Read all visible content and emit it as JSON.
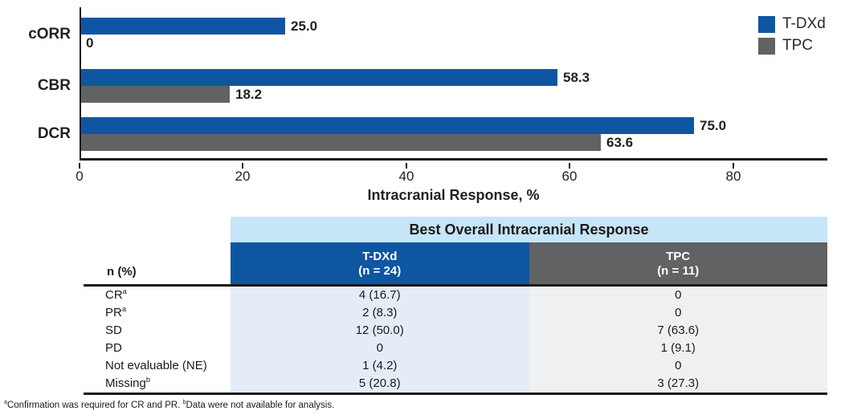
{
  "chart_data": {
    "type": "bar",
    "orientation": "horizontal",
    "title": "",
    "categories": [
      "cORR",
      "CBR",
      "DCR"
    ],
    "series": [
      {
        "name": "T-DXd",
        "color": "#0e56a1",
        "values": [
          25.0,
          58.3,
          75.0
        ],
        "value_labels": [
          "25.0",
          "58.3",
          "75.0"
        ]
      },
      {
        "name": "TPC",
        "color": "#606264",
        "values": [
          0,
          18.2,
          63.6
        ],
        "value_labels": [
          "0",
          "18.2",
          "63.6"
        ]
      }
    ],
    "xlabel": "Intracranial Response, %",
    "ylabel": "",
    "xticks": [
      0,
      20,
      40,
      60,
      80
    ],
    "xlim": [
      0,
      91.5
    ],
    "grid": false,
    "legend_position": "top-right",
    "bar_value_labels": true
  },
  "legend": {
    "items": [
      {
        "label": "T-DXd",
        "color": "#0e56a1"
      },
      {
        "label": "TPC",
        "color": "#606264"
      }
    ]
  },
  "table": {
    "title": "Best Overall Intracranial Response",
    "row_header": "n (%)",
    "col_headers": [
      {
        "name": "T-DXd",
        "n_label": "(n = 24)",
        "bg": "#0e56a1"
      },
      {
        "name": "TPC",
        "n_label": "(n = 11)",
        "bg": "#606264"
      }
    ],
    "rows": [
      {
        "label": "CR",
        "sup": "a",
        "tdxd": "4 (16.7)",
        "tpc": "0"
      },
      {
        "label": "PR",
        "sup": "a",
        "tdxd": "2 (8.3)",
        "tpc": "0"
      },
      {
        "label": "SD",
        "sup": "",
        "tdxd": "12 (50.0)",
        "tpc": "7 (63.6)"
      },
      {
        "label": "PD",
        "sup": "",
        "tdxd": "0",
        "tpc": "1 (9.1)"
      },
      {
        "label": "Not evaluable (NE)",
        "sup": "",
        "tdxd": "1 (4.2)",
        "tpc": "0"
      },
      {
        "label": "Missing",
        "sup": "b",
        "tdxd": "5 (20.8)",
        "tpc": "3 (27.3)"
      }
    ]
  },
  "footnote": {
    "parts": [
      {
        "sup": "a",
        "text": "Confirmation was required for CR and PR. "
      },
      {
        "sup": "b",
        "text": "Data were not available for analysis."
      }
    ]
  },
  "colors": {
    "tdxd_blue": "#0e56a1",
    "tpc_gray": "#606264",
    "table_title_bg": "#c6e5f7",
    "tdxd_body_bg": "#e4edf7",
    "tpc_body_bg": "#eff0f1",
    "axis_black": "#1a1a1a"
  }
}
